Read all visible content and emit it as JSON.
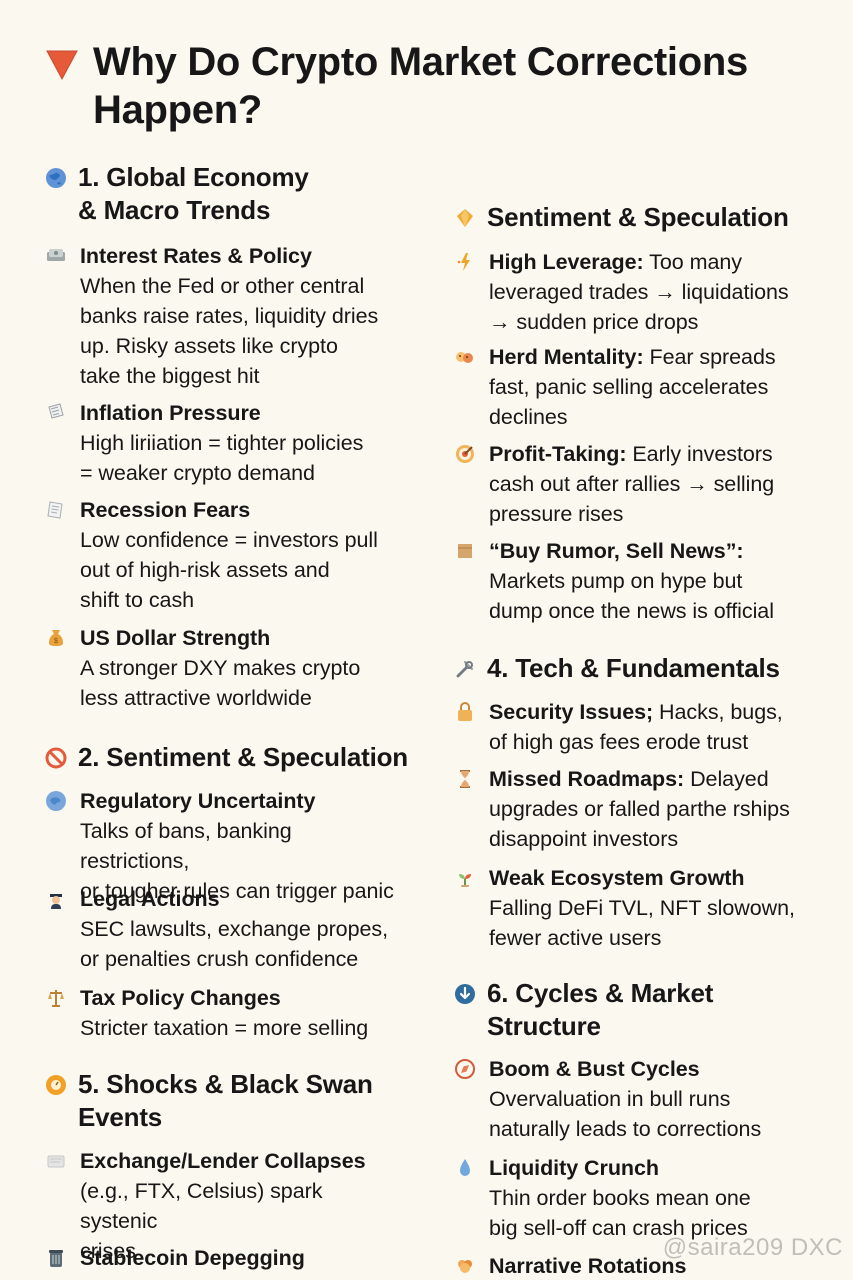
{
  "header": {
    "title": "Why Do Crypto Market Corrections Happen?",
    "icon": "red-triangle-down-icon",
    "accent_color": "#ea5a3a"
  },
  "left_sections": [
    {
      "title": "1. Global Economy\n& Macro Trends",
      "icon": "globe-icon",
      "items": [
        {
          "title": "Interest Rates & Policy",
          "desc": "When the Fed or other central\nbanks raise rates, liquidity dries\nup. Risky assets like crypto\ntake the biggest hit",
          "icon": "money-stack-icon"
        },
        {
          "title": "Inflation Pressure",
          "desc": "High liriiation  = tighter policies\n= weaker crypto demand",
          "icon": "paper-icon"
        },
        {
          "title": "Recession Fears",
          "desc": "Low confidence = investors pull\nout of high-risk assets and\nshift to cash",
          "icon": "paper-icon"
        },
        {
          "title": "US Dollar Strength",
          "desc": "A stronger DXY makes crypto\nless attractive worldwide",
          "icon": "money-bag-icon"
        }
      ]
    },
    {
      "title": "2. Sentiment & Speculation",
      "icon": "prohibited-icon",
      "items": [
        {
          "title": "Regulatory Uncertainty",
          "desc": "Talks of bans, banking restrictions,\nor tougher rules can trigger panic",
          "icon": "globe-icon"
        },
        {
          "title": "Legal Actions",
          "desc": "SEC lawsults, exchange propes,\nor penalties crush confidence",
          "icon": "police-icon"
        },
        {
          "title": "Tax Policy Changes",
          "desc": "Stricter taxation = more selling",
          "icon": "balance-scale-icon"
        }
      ]
    },
    {
      "title": "5. Shocks & Black Swan\nEvents",
      "icon": "alarm-icon",
      "items": [
        {
          "title": "Exchange/Lender Collapses",
          "desc": "(e.g., FTX, Celsius) spark systenic\ncrises",
          "icon": "ledger-icon"
        },
        {
          "title": "Stablecoin Depegging",
          "desc": "",
          "icon": "trash-icon"
        }
      ]
    }
  ],
  "right_sections": [
    {
      "title": "Sentiment & Speculation",
      "icon": "diamond-icon",
      "items": [
        {
          "title": "High Leverage:",
          "desc": " Too many\nleveraged trades → liquidations\n→ sudden price drops",
          "icon": "lightning-icon"
        },
        {
          "title": "Herd Mentality:",
          "desc": " Fear spreads\nfast, panic selling accelerates\ndeclines",
          "icon": "herd-icon"
        },
        {
          "title": "Profit-Taking:",
          "desc": " Early investors\ncash out after rallies → selling\npressure rises",
          "icon": "target-icon"
        },
        {
          "title": "“Buy Rumor, Sell News”:",
          "desc": "\nMarkets pump on hype but\ndump once the news is official",
          "icon": "box-icon"
        }
      ]
    },
    {
      "title": "4. Tech & Fundamentals",
      "icon": "tools-icon",
      "items": [
        {
          "title": "Security Issues;",
          "desc": " Hacks, bugs,\nof high gas fees erode trust",
          "icon": "lock-icon"
        },
        {
          "title": "Missed Roadmaps:",
          "desc": " Delayed\nupgrades or falled parthe rships\ndisappoint investors",
          "icon": "hourglass-icon"
        },
        {
          "title": "Weak Ecosystem Growth",
          "desc": "Falling DeFi TVL, NFT slowown,\nfewer active users",
          "icon": "sprout-icon"
        }
      ]
    },
    {
      "title": "6. Cycles & Market\nStructure",
      "icon": "down-arrow-circle-icon",
      "items": [
        {
          "title": "Boom & Bust Cycles",
          "desc": "Overvaluation in bull runs\nnaturally leads to corrections",
          "icon": "compass-icon"
        },
        {
          "title": "Liquidity Crunch",
          "desc": "Thin order books mean one\nbig sell-off can crash prices",
          "icon": "droplet-icon"
        },
        {
          "title": "Narrative Rotations",
          "desc": "",
          "icon": "brain-icon"
        }
      ]
    }
  ],
  "watermark": "@saira209 DXC"
}
